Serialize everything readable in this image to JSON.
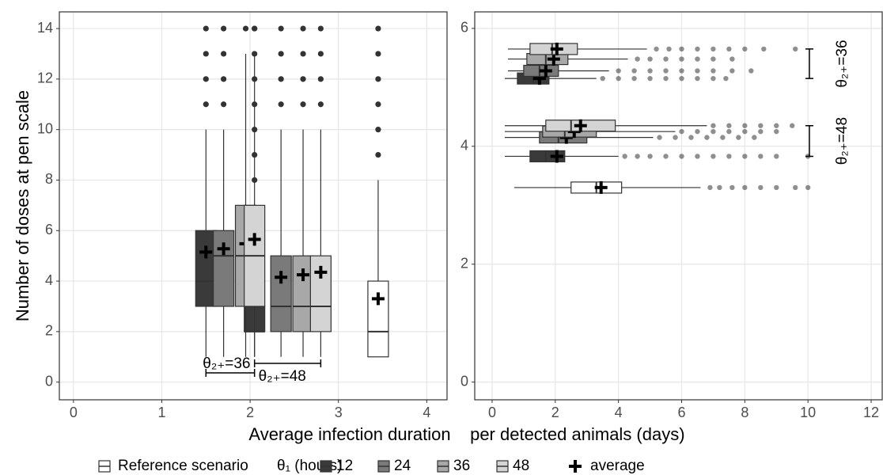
{
  "chart_data": [
    {
      "type": "boxplot",
      "orientation": "vertical",
      "y_label": "Number of doses at pen scale",
      "xlim": [
        -0.16,
        4.23
      ],
      "ylim": [
        -0.7,
        14.66
      ],
      "xticks": [
        0,
        1,
        2,
        3,
        4
      ],
      "yticks": [
        0,
        2,
        4,
        6,
        8,
        10,
        12,
        14
      ],
      "grid": true,
      "legend_title": "θ₁ (hours)",
      "mean_label": "average",
      "series": [
        {
          "name": "Reference scenario",
          "color": "#ffffff",
          "boxes": [
            {
              "x": 3.45,
              "whisker_low": 1,
              "q1": 1,
              "median": 2,
              "q3": 4,
              "whisker_high": 8,
              "mean": 3.3,
              "outliers": [
                9,
                10,
                11,
                12,
                13,
                14
              ]
            }
          ]
        },
        {
          "name": "12",
          "color": "#3a3a3a",
          "boxes": [
            {
              "x": 1.5,
              "whisker_low": 1,
              "q1": 3,
              "median": 4,
              "q3": 6,
              "whisker_high": 10,
              "mean": 5.15,
              "outliers": [
                11,
                12,
                13,
                14
              ]
            },
            {
              "x": 2.05,
              "whisker_low": 1,
              "q1": 2,
              "median": 2,
              "q3": 3,
              "whisker_high": 7,
              "mean": 3.83,
              "outliers": [
                8,
                9,
                10,
                11,
                12,
                13,
                14
              ]
            }
          ]
        },
        {
          "name": "24",
          "color": "#7a7a7a",
          "boxes": [
            {
              "x": 1.7,
              "whisker_low": 1,
              "q1": 3,
              "median": 5,
              "q3": 6,
              "whisker_high": 10,
              "mean": 5.28,
              "outliers": [
                11,
                12,
                13,
                14
              ]
            },
            {
              "x": 2.35,
              "whisker_low": 1,
              "q1": 2,
              "median": 3,
              "q3": 5,
              "whisker_high": 10,
              "mean": 4.15,
              "outliers": [
                11,
                12,
                13,
                14
              ]
            }
          ]
        },
        {
          "name": "36",
          "color": "#a8a8a8",
          "boxes": [
            {
              "x": 1.95,
              "whisker_low": 1,
              "q1": 3,
              "median": 5,
              "q3": 7,
              "whisker_high": 13,
              "mean": 5.48,
              "outliers": [
                14
              ]
            },
            {
              "x": 2.6,
              "whisker_low": 1,
              "q1": 2,
              "median": 3,
              "q3": 5,
              "whisker_high": 10,
              "mean": 4.25,
              "outliers": [
                11,
                12,
                13,
                14
              ]
            }
          ]
        },
        {
          "name": "48",
          "color": "#d4d4d4",
          "boxes": [
            {
              "x": 2.05,
              "whisker_low": 1,
              "q1": 3,
              "median": 5,
              "q3": 7,
              "whisker_high": 13,
              "mean": 5.65,
              "outliers": [
                14
              ]
            },
            {
              "x": 2.8,
              "whisker_low": 1,
              "q1": 2,
              "median": 3,
              "q3": 5,
              "whisker_high": 10,
              "mean": 4.35,
              "outliers": [
                11,
                12,
                13,
                14
              ]
            }
          ]
        }
      ],
      "groups": [
        {
          "label": "θ₂₊=36",
          "range": [
            1.5,
            2.05
          ]
        },
        {
          "label": "θ₂₊=48",
          "range": [
            2.05,
            2.8
          ]
        }
      ]
    },
    {
      "type": "boxplot",
      "orientation": "horizontal",
      "xlim": [
        -0.55,
        12.35
      ],
      "ylim": [
        -0.3,
        6.28
      ],
      "xticks": [
        0,
        2,
        4,
        6,
        8,
        10,
        12
      ],
      "yticks": [
        0,
        2,
        4,
        6
      ],
      "grid": true,
      "series": [
        {
          "color": "#ffffff",
          "boxes": [
            {
              "y": 3.3,
              "whisker_low": 0.7,
              "q1": 2.5,
              "median": 3.3,
              "q3": 4.1,
              "whisker_high": 6.6,
              "mean": 3.45,
              "outliers": [
                6.9,
                7.2,
                7.6,
                8,
                8.5,
                9,
                9.6,
                10
              ]
            }
          ]
        },
        {
          "color": "#3a3a3a",
          "boxes": [
            {
              "y": 5.15,
              "whisker_low": 0.4,
              "q1": 0.8,
              "median": 1.3,
              "q3": 1.8,
              "whisker_high": 3.3,
              "mean": 1.5,
              "outliers": [
                3.5,
                4,
                4.5,
                5,
                5.5,
                6,
                6.5,
                7,
                7.4
              ]
            },
            {
              "y": 3.83,
              "whisker_low": 0.4,
              "q1": 1.2,
              "median": 1.7,
              "q3": 2.3,
              "whisker_high": 4,
              "mean": 2.05,
              "outliers": [
                4.2,
                4.6,
                5,
                5.5,
                6,
                6.5,
                7,
                7.5,
                8,
                8.5,
                9,
                10
              ]
            }
          ]
        },
        {
          "color": "#7a7a7a",
          "boxes": [
            {
              "y": 5.28,
              "whisker_low": 0.5,
              "q1": 1,
              "median": 1.5,
              "q3": 2.1,
              "whisker_high": 3.7,
              "mean": 1.7,
              "outliers": [
                4,
                4.5,
                5,
                5.5,
                6,
                6.5,
                7,
                7.6,
                8.2
              ]
            },
            {
              "y": 4.15,
              "whisker_low": 0.4,
              "q1": 1.5,
              "median": 2.1,
              "q3": 3,
              "whisker_high": 5.1,
              "mean": 2.35,
              "outliers": [
                5.3,
                5.8,
                6.3,
                6.8,
                7.3,
                7.8,
                8.3
              ]
            }
          ]
        },
        {
          "color": "#a8a8a8",
          "boxes": [
            {
              "y": 5.48,
              "whisker_low": 0.5,
              "q1": 1.1,
              "median": 1.7,
              "q3": 2.4,
              "whisker_high": 4.3,
              "mean": 1.95,
              "outliers": [
                4.6,
                5,
                5.5,
                6,
                6.5,
                7,
                7.6
              ]
            },
            {
              "y": 4.25,
              "whisker_low": 0.4,
              "q1": 1.6,
              "median": 2.3,
              "q3": 3.3,
              "whisker_high": 5.8,
              "mean": 2.6,
              "outliers": [
                6,
                6.5,
                7,
                7.5,
                8,
                8.5,
                9
              ]
            }
          ]
        },
        {
          "color": "#d4d4d4",
          "boxes": [
            {
              "y": 5.65,
              "whisker_low": 0.5,
              "q1": 1.2,
              "median": 1.9,
              "q3": 2.7,
              "whisker_high": 4.9,
              "mean": 2.05,
              "outliers": [
                5.2,
                5.6,
                6,
                6.5,
                7,
                7.5,
                8,
                8.6,
                9.6
              ]
            },
            {
              "y": 4.35,
              "whisker_low": 0.4,
              "q1": 1.7,
              "median": 2.5,
              "q3": 3.9,
              "whisker_high": 6.8,
              "mean": 2.8,
              "outliers": [
                7,
                7.5,
                8,
                8.5,
                9,
                9.5
              ]
            }
          ]
        }
      ],
      "groups": [
        {
          "label": "θ₂₊=36",
          "range": [
            5.15,
            5.65
          ]
        },
        {
          "label": "θ₂₊=48",
          "range": [
            3.83,
            4.35
          ]
        }
      ]
    }
  ],
  "x_label": "Average infection duration    per detected animals (days)"
}
